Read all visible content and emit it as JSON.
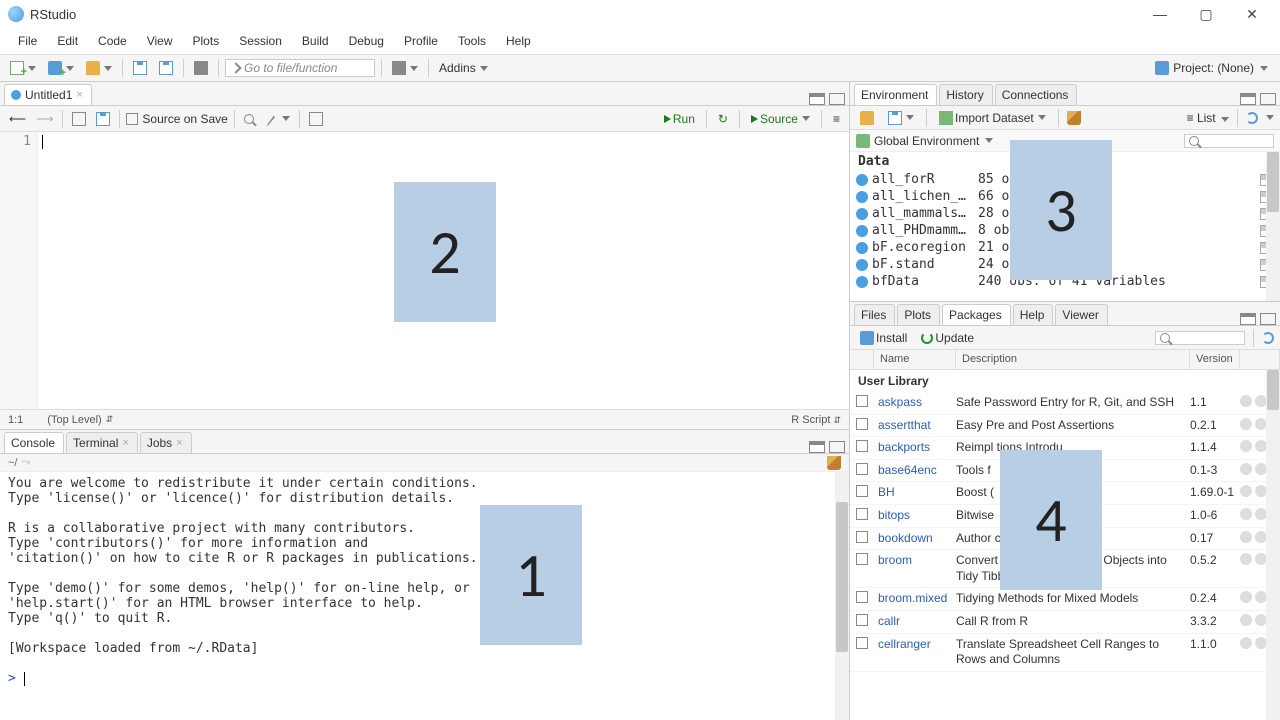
{
  "window": {
    "title": "RStudio"
  },
  "winbuttons": {
    "min": "—",
    "max": "▢",
    "close": "✕"
  },
  "menu": [
    "File",
    "Edit",
    "Code",
    "View",
    "Plots",
    "Session",
    "Build",
    "Debug",
    "Profile",
    "Tools",
    "Help"
  ],
  "toolbar": {
    "gotofile": "Go to file/function",
    "addins": "Addins",
    "project": "Project: (None)"
  },
  "source": {
    "tab": "Untitled1",
    "source_on_save": "Source on Save",
    "run": "Run",
    "source": "Source",
    "line1": "1",
    "status_pos": "1:1",
    "status_scope": "(Top Level)",
    "status_lang": "R Script"
  },
  "console": {
    "tabs": [
      "Console",
      "Terminal",
      "Jobs"
    ],
    "path": "~/",
    "text": "You are welcome to redistribute it under certain conditions.\nType 'license()' or 'licence()' for distribution details.\n\nR is a collaborative project with many contributors.\nType 'contributors()' for more information and\n'citation()' on how to cite R or R packages in publications.\n\nType 'demo()' for some demos, 'help()' for on-line help, or\n'help.start()' for an HTML browser interface to help.\nType 'q()' to quit R.\n\n[Workspace loaded from ~/.RData]\n",
    "prompt": ">"
  },
  "env": {
    "tabs": [
      "Environment",
      "History",
      "Connections"
    ],
    "import": "Import Dataset",
    "list": "List",
    "scope": "Global Environment",
    "section": "Data",
    "rows": [
      {
        "name": "all_forR",
        "desc": "85 ob               les"
      },
      {
        "name": "all_lichen_…",
        "desc": "66 ob               les"
      },
      {
        "name": "all_mammals…",
        "desc": "28 ob               les"
      },
      {
        "name": "all_PHDmamm…",
        "desc": "8 obs               es"
      },
      {
        "name": "bF.ecoregion",
        "desc": "21 ob               les"
      },
      {
        "name": "bF.stand",
        "desc": "24 ob               les"
      },
      {
        "name": "bfData",
        "desc": "240 obs. of 41 variables"
      }
    ]
  },
  "pkg": {
    "tabs": [
      "Files",
      "Plots",
      "Packages",
      "Help",
      "Viewer"
    ],
    "install": "Install",
    "update": "Update",
    "cols": {
      "name": "Name",
      "desc": "Description",
      "ver": "Version"
    },
    "section": "User Library",
    "rows": [
      {
        "name": "askpass",
        "desc": "Safe Password Entry for R, Git, and SSH",
        "ver": "1.1"
      },
      {
        "name": "assertthat",
        "desc": "Easy Pre and Post Assertions",
        "ver": "0.2.1"
      },
      {
        "name": "backports",
        "desc": "Reimpl                         tions Introdu",
        "ver": "1.1.4"
      },
      {
        "name": "base64enc",
        "desc": "Tools f",
        "ver": "0.1-3"
      },
      {
        "name": "BH",
        "desc": "Boost (",
        "ver": "1.69.0-1"
      },
      {
        "name": "bitops",
        "desc": "Bitwise",
        "ver": "1.0-6"
      },
      {
        "name": "bookdown",
        "desc": "Author                           cal Docum                     n",
        "ver": "0.17"
      },
      {
        "name": "broom",
        "desc": "Convert Statistical Analysis Objects into Tidy Tibbles",
        "ver": "0.5.2"
      },
      {
        "name": "broom.mixed",
        "desc": "Tidying Methods for Mixed Models",
        "ver": "0.2.4"
      },
      {
        "name": "callr",
        "desc": "Call R from R",
        "ver": "3.3.2"
      },
      {
        "name": "cellranger",
        "desc": "Translate Spreadsheet Cell Ranges to Rows and Columns",
        "ver": "1.1.0"
      }
    ]
  },
  "overlays": {
    "n1": "1",
    "n2": "2",
    "n3": "3",
    "n4": "4",
    "box_color": "#b8cee4"
  }
}
